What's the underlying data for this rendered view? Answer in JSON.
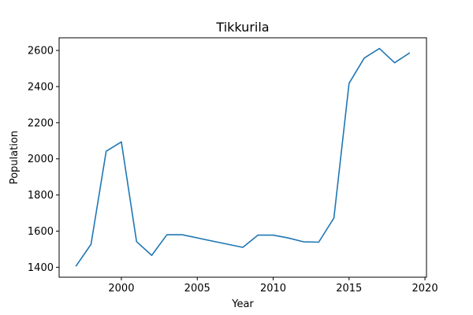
{
  "chart_data": {
    "type": "line",
    "title": "Tikkurila",
    "xlabel": "Year",
    "ylabel": "Population",
    "xlim": [
      1995.9,
      2020.1
    ],
    "ylim": [
      1345,
      2670
    ],
    "xticks": [
      2000,
      2005,
      2010,
      2015,
      2020
    ],
    "yticks": [
      1400,
      1600,
      1800,
      2000,
      2200,
      2400,
      2600
    ],
    "grid": false,
    "line_color": "#1f77b4",
    "series": [
      {
        "x": [
          1997,
          1998,
          1999,
          2000,
          2001,
          2002,
          2003,
          2004,
          2008,
          2009,
          2010,
          2011,
          2012,
          2013,
          2014,
          2015,
          2016,
          2017,
          2018,
          2019
        ],
        "values": [
          1405,
          1527,
          2042,
          2094,
          1542,
          1466,
          1580,
          1580,
          1510,
          1578,
          1578,
          1562,
          1541,
          1539,
          1672,
          2418,
          2558,
          2611,
          2532,
          2587
        ]
      }
    ]
  }
}
